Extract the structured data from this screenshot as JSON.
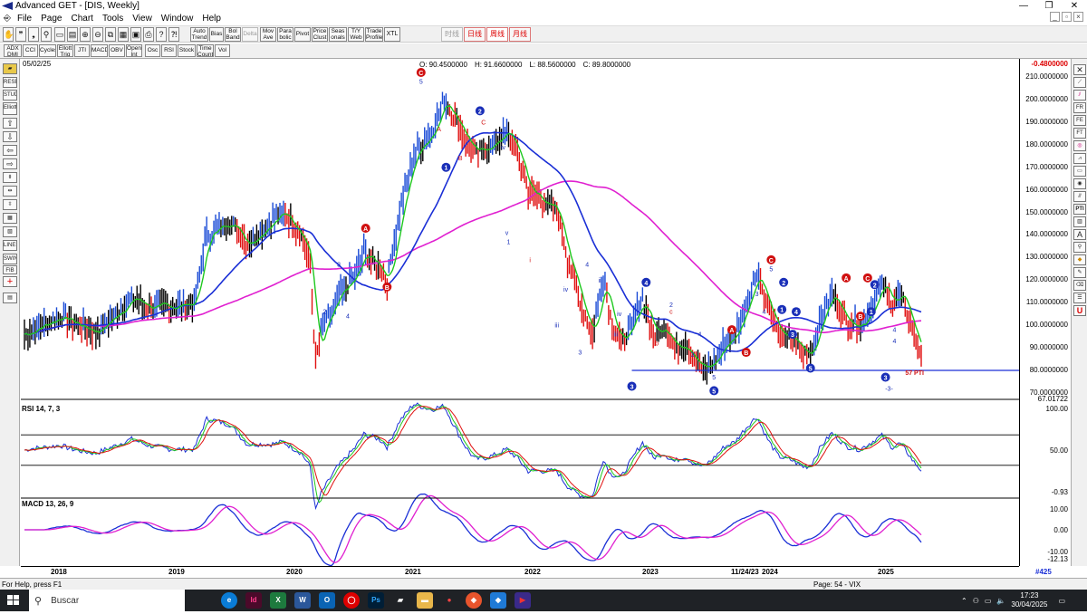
{
  "window": {
    "title": "Advanced GET - [DIS, Weekly]",
    "controls": [
      "—",
      "❐",
      "✕"
    ]
  },
  "menu": {
    "items": [
      "File",
      "Page",
      "Chart",
      "Tools",
      "View",
      "Window",
      "Help"
    ]
  },
  "toolbar1": {
    "buttons": [
      "Auto Trend",
      "Bias",
      "Bol Band",
      "Delta",
      "Mov Ave",
      "Para bolic",
      "Pivot",
      "Price Clust",
      "Seas onals",
      "T/Y Web",
      "Trade Profile",
      "XTL"
    ],
    "timeframes": [
      "时线",
      "日线",
      "周线",
      "月线"
    ]
  },
  "toolbar2": {
    "buttons": [
      "ADX DMI",
      "CCI",
      "Cycles",
      "Ellott Trig",
      "JTI",
      "MACD",
      "OBV",
      "Open Int",
      "Osc",
      "RSI",
      "Stock",
      "Time Count",
      "Vol"
    ]
  },
  "chart": {
    "date": "05/02/25",
    "ohlc": {
      "open": "O: 90.4500000",
      "high": "H: 91.6600000",
      "low": "L: 88.5600000",
      "close": "C: 89.8000000"
    },
    "change": "-0.4800000",
    "price_axis": [
      "210.0000000",
      "200.0000000",
      "190.0000000",
      "180.0000000",
      "170.0000000",
      "160.0000000",
      "150.0000000",
      "140.0000000",
      "130.0000000",
      "120.0000000",
      "110.0000000",
      "100.0000000",
      "90.0000000",
      "80.0000000",
      "70.0000000",
      "67.01722"
    ],
    "wave_labels": {
      "c5": "5",
      "a_top": "A",
      "b_top": "B",
      "c_top": "C",
      "iv_top": "iv",
      "w1": "1",
      "w2": "2",
      "w3": "3",
      "w4": "4",
      "w5": "5",
      "i": "i",
      "ii": "ii",
      "iii": "iii",
      "v": "v",
      "a_low": "a",
      "b_low": "b",
      "c_low": "c",
      "minus3": "-3-",
      "pti": "57 PTI"
    },
    "support_level": "80.0000000"
  },
  "rsi": {
    "label": "RSI 14, 7, 3",
    "axis": [
      "100.00",
      "50.00",
      "-0.93"
    ]
  },
  "macd": {
    "label": "MACD 13, 26, 9",
    "axis": [
      "10.00",
      "0.00",
      "-10.00",
      "-12.13"
    ]
  },
  "time_axis": {
    "years": [
      "2018",
      "2019",
      "2020",
      "2021",
      "2022",
      "2023",
      "11/24/23",
      "2024",
      "2025"
    ],
    "page_count": "#425"
  },
  "status": {
    "help": "For Help, press F1",
    "page": "Page: 54 - VIX"
  },
  "taskbar": {
    "search_placeholder": "Buscar",
    "time": "17:23",
    "date": "30/04/2025",
    "apps": [
      "Id",
      "X",
      "W",
      "O",
      "Ps"
    ]
  },
  "colors": {
    "up_bar": "#1a4bd6",
    "down_bar": "#e01010",
    "neutral_bar": "#000000",
    "ma_fast": "#1ec81e",
    "ma_mid": "#1a2fd6",
    "ma_slow": "#e020d0",
    "wave_blue": "#1a2fb8",
    "wave_red": "#d01010",
    "rsi_fast": "#1a2fd6",
    "rsi_slow": "#e01010",
    "rsi_green": "#1ec81e",
    "macd_line": "#1a2fd6",
    "macd_signal": "#e020d0"
  }
}
